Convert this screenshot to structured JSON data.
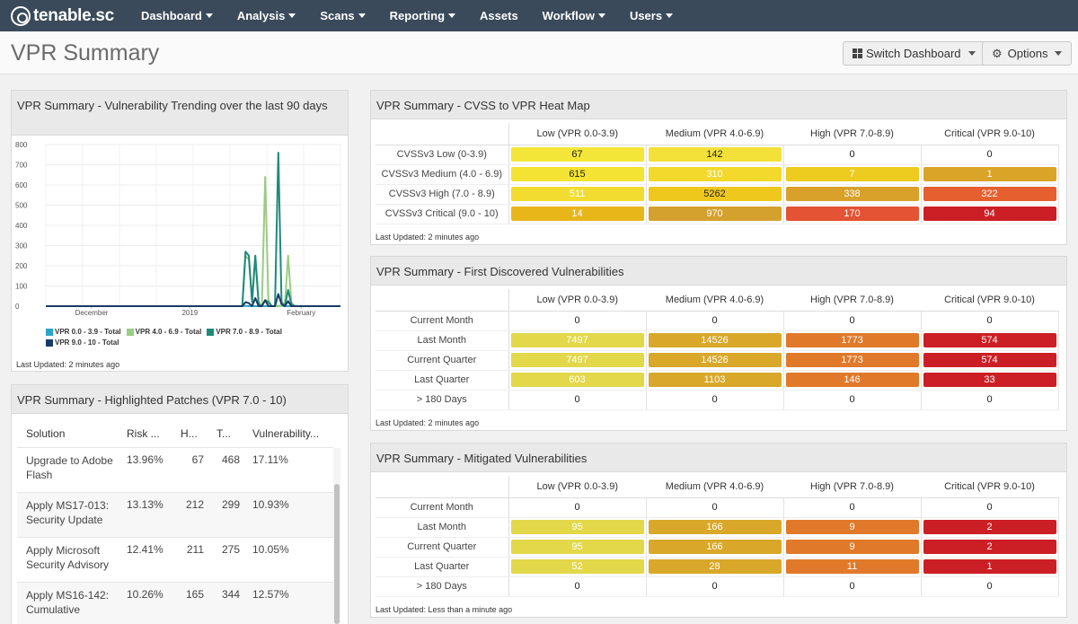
{
  "app": {
    "logo_text": "tenable.sc"
  },
  "nav": [
    {
      "label": "Dashboard",
      "caret": true
    },
    {
      "label": "Analysis",
      "caret": true
    },
    {
      "label": "Scans",
      "caret": true
    },
    {
      "label": "Reporting",
      "caret": true
    },
    {
      "label": "Assets",
      "caret": false
    },
    {
      "label": "Workflow",
      "caret": true
    },
    {
      "label": "Users",
      "caret": true
    }
  ],
  "header": {
    "title": "VPR Summary",
    "switch_label": "Switch Dashboard",
    "options_label": "Options"
  },
  "trend": {
    "title": "VPR Summary - Vulnerability Trending over the last 90 days",
    "updated": "Last Updated: 2 minutes ago",
    "legend": [
      {
        "label": "VPR 0.0 - 3.9 - Total",
        "color": "#2aa4c8"
      },
      {
        "label": "VPR 4.0 - 6.9 - Total",
        "color": "#9acc84"
      },
      {
        "label": "VPR 7.0 - 8.9 - Total",
        "color": "#1f8a7a"
      },
      {
        "label": "VPR 9.0 - 10 - Total",
        "color": "#1a3a66"
      }
    ]
  },
  "chart_data": {
    "type": "line",
    "title": "VPR Summary - Vulnerability Trending over the last 90 days",
    "xlabel": "",
    "ylabel": "",
    "ylim": [
      0,
      800
    ],
    "yticks": [
      0,
      100,
      200,
      300,
      400,
      500,
      600,
      700,
      800
    ],
    "x_tick_labels": [
      "December",
      "2019",
      "February"
    ],
    "x_tick_positions": [
      14,
      44,
      78
    ],
    "grid": true,
    "legend_position": "bottom",
    "x": [
      0,
      10,
      20,
      30,
      40,
      50,
      58,
      60,
      61,
      62,
      63,
      64,
      65,
      66,
      67,
      68,
      69,
      70,
      71,
      72,
      73,
      74,
      75,
      76,
      77,
      78,
      79,
      80,
      81,
      82,
      83,
      84,
      85,
      86,
      87,
      88,
      89,
      90
    ],
    "series": [
      {
        "name": "VPR 0.0 - 3.9 - Total",
        "color": "#2aa4c8",
        "values": [
          0,
          0,
          0,
          0,
          0,
          0,
          0,
          0,
          2,
          0,
          0,
          0,
          0,
          0,
          0,
          0,
          0,
          0,
          2,
          0,
          0,
          0,
          0,
          0,
          0,
          0,
          0,
          0,
          0,
          0,
          0,
          0,
          0,
          0,
          0,
          0,
          0,
          0
        ]
      },
      {
        "name": "VPR 4.0 - 6.9 - Total",
        "color": "#9acc84",
        "values": [
          0,
          0,
          0,
          0,
          0,
          0,
          0,
          0,
          250,
          230,
          30,
          250,
          20,
          0,
          640,
          30,
          0,
          0,
          0,
          0,
          0,
          250,
          20,
          0,
          0,
          0,
          0,
          0,
          0,
          0,
          0,
          0,
          0,
          0,
          0,
          0,
          0,
          0
        ]
      },
      {
        "name": "VPR 7.0 - 8.9 - Total",
        "color": "#1f8a7a",
        "values": [
          0,
          0,
          0,
          0,
          0,
          0,
          0,
          0,
          270,
          250,
          20,
          250,
          10,
          0,
          30,
          20,
          0,
          0,
          760,
          20,
          0,
          80,
          10,
          0,
          0,
          0,
          0,
          0,
          0,
          0,
          0,
          0,
          0,
          0,
          0,
          0,
          0,
          0
        ]
      },
      {
        "name": "VPR 9.0 - 10 - Total",
        "color": "#1a3a66",
        "values": [
          0,
          0,
          0,
          0,
          0,
          0,
          0,
          0,
          20,
          15,
          0,
          40,
          0,
          0,
          30,
          0,
          0,
          0,
          60,
          10,
          0,
          25,
          0,
          0,
          0,
          0,
          0,
          0,
          0,
          0,
          0,
          0,
          0,
          0,
          0,
          0,
          0,
          0
        ]
      }
    ]
  },
  "patches": {
    "title": "VPR Summary - Highlighted Patches (VPR 7.0 - 10)",
    "columns": [
      "Solution",
      "Risk ...",
      "H...",
      "T...",
      "Vulnerability..."
    ],
    "rows": [
      [
        "Upgrade to Adobe Flash",
        "13.96%",
        "67",
        "468",
        "17.11%"
      ],
      [
        "Apply MS17-013: Security Update",
        "13.13%",
        "212",
        "299",
        "10.93%"
      ],
      [
        "Apply Microsoft Security Advisory",
        "12.41%",
        "211",
        "275",
        "10.05%"
      ],
      [
        "Apply MS16-142: Cumulative",
        "10.26%",
        "165",
        "344",
        "12.57%"
      ]
    ]
  },
  "heatmap": {
    "title": "VPR Summary - CVSS to VPR Heat Map",
    "updated": "Last Updated: 2 minutes ago",
    "columns": [
      "Low (VPR 0.0-3.9)",
      "Medium (VPR 4.0-6.9)",
      "High (VPR 7.0-8.9)",
      "Critical (VPR 9.0-10)"
    ],
    "rows": [
      {
        "label": "CVSSv3 Low (0-3.9)",
        "cells": [
          {
            "v": "67",
            "c": "#f3e639",
            "light": false
          },
          {
            "v": "142",
            "c": "#f3e039",
            "light": false
          },
          {
            "v": "0",
            "c": "",
            "light": false
          },
          {
            "v": "0",
            "c": "",
            "light": false
          }
        ]
      },
      {
        "label": "CVSSv3 Medium (4.0 - 6.9)",
        "cells": [
          {
            "v": "615",
            "c": "#f4e332",
            "light": false
          },
          {
            "v": "310",
            "c": "#f2d92c",
            "light": true
          },
          {
            "v": "7",
            "c": "#eecb1f",
            "light": true
          },
          {
            "v": "1",
            "c": "#d9a428",
            "light": true
          }
        ]
      },
      {
        "label": "CVSSv3 High (7.0 - 8.9)",
        "cells": [
          {
            "v": "511",
            "c": "#f2dc2f",
            "light": true
          },
          {
            "v": "5262",
            "c": "#efc81e",
            "light": false
          },
          {
            "v": "338",
            "c": "#d9a12a",
            "light": true
          },
          {
            "v": "322",
            "c": "#e5602e",
            "light": true
          }
        ]
      },
      {
        "label": "CVSSv3 Critical (9.0 - 10)",
        "cells": [
          {
            "v": "14",
            "c": "#e8b619",
            "light": true
          },
          {
            "v": "970",
            "c": "#d5a12e",
            "light": true
          },
          {
            "v": "170",
            "c": "#e35334",
            "light": true
          },
          {
            "v": "94",
            "c": "#cc1f25",
            "light": true
          }
        ]
      }
    ]
  },
  "first_discovered": {
    "title": "VPR Summary - First Discovered Vulnerabilities",
    "updated": "Last Updated: 2 minutes ago",
    "columns": [
      "Low (VPR 0.0-3.9)",
      "Medium (VPR 4.0-6.9)",
      "High (VPR 7.0-8.9)",
      "Critical (VPR 9.0-10)"
    ],
    "rows": [
      {
        "label": "Current Month",
        "cells": [
          {
            "v": "0",
            "c": ""
          },
          {
            "v": "0",
            "c": ""
          },
          {
            "v": "0",
            "c": ""
          },
          {
            "v": "0",
            "c": ""
          }
        ]
      },
      {
        "label": "Last Month",
        "cells": [
          {
            "v": "7497",
            "c": "#e2d84a"
          },
          {
            "v": "14526",
            "c": "#d9a82a"
          },
          {
            "v": "1773",
            "c": "#e07a2a"
          },
          {
            "v": "574",
            "c": "#cc1f25"
          }
        ]
      },
      {
        "label": "Current Quarter",
        "cells": [
          {
            "v": "7497",
            "c": "#e2d84a"
          },
          {
            "v": "14526",
            "c": "#d9a82a"
          },
          {
            "v": "1773",
            "c": "#e07a2a"
          },
          {
            "v": "574",
            "c": "#cc1f25"
          }
        ]
      },
      {
        "label": "Last Quarter",
        "cells": [
          {
            "v": "603",
            "c": "#e2d84a"
          },
          {
            "v": "1103",
            "c": "#d9a82a"
          },
          {
            "v": "146",
            "c": "#e07a2a"
          },
          {
            "v": "33",
            "c": "#cc1f25"
          }
        ]
      },
      {
        "label": "> 180 Days",
        "cells": [
          {
            "v": "0",
            "c": ""
          },
          {
            "v": "0",
            "c": ""
          },
          {
            "v": "0",
            "c": ""
          },
          {
            "v": "0",
            "c": ""
          }
        ]
      }
    ]
  },
  "mitigated": {
    "title": "VPR Summary - Mitigated Vulnerabilities",
    "updated": "Last Updated: Less than a minute ago",
    "columns": [
      "Low (VPR 0.0-3.9)",
      "Medium (VPR 4.0-6.9)",
      "High (VPR 7.0-8.9)",
      "Critical (VPR 9.0-10)"
    ],
    "rows": [
      {
        "label": "Current Month",
        "cells": [
          {
            "v": "0",
            "c": ""
          },
          {
            "v": "0",
            "c": ""
          },
          {
            "v": "0",
            "c": ""
          },
          {
            "v": "0",
            "c": ""
          }
        ]
      },
      {
        "label": "Last Month",
        "cells": [
          {
            "v": "95",
            "c": "#e2d84a"
          },
          {
            "v": "166",
            "c": "#d9a82a"
          },
          {
            "v": "9",
            "c": "#e07a2a"
          },
          {
            "v": "2",
            "c": "#cc1f25"
          }
        ]
      },
      {
        "label": "Current Quarter",
        "cells": [
          {
            "v": "95",
            "c": "#e2d84a"
          },
          {
            "v": "166",
            "c": "#d9a82a"
          },
          {
            "v": "9",
            "c": "#e07a2a"
          },
          {
            "v": "2",
            "c": "#cc1f25"
          }
        ]
      },
      {
        "label": "Last Quarter",
        "cells": [
          {
            "v": "52",
            "c": "#e2d84a"
          },
          {
            "v": "28",
            "c": "#d9a82a"
          },
          {
            "v": "11",
            "c": "#e07a2a"
          },
          {
            "v": "1",
            "c": "#cc1f25"
          }
        ]
      },
      {
        "label": "> 180 Days",
        "cells": [
          {
            "v": "0",
            "c": ""
          },
          {
            "v": "0",
            "c": ""
          },
          {
            "v": "0",
            "c": ""
          },
          {
            "v": "0",
            "c": ""
          }
        ]
      }
    ]
  }
}
